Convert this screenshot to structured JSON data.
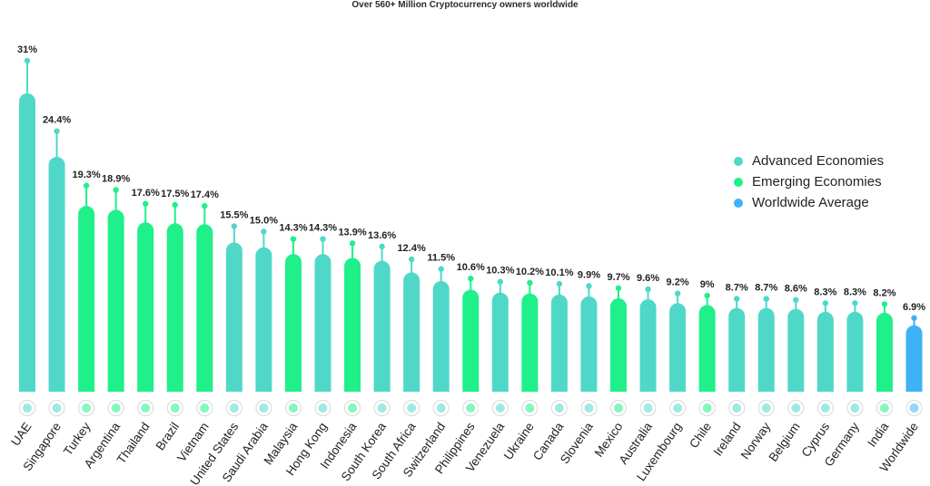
{
  "chart_data": {
    "type": "bar",
    "title": "Over 560+ Million Cryptocurrency owners worldwide",
    "xlabel": "",
    "ylabel": "",
    "ylim": [
      0,
      31
    ],
    "grid": false,
    "legend_position": "right",
    "categories": [
      "UAE",
      "Singapore",
      "Turkey",
      "Argentina",
      "Thailand",
      "Brazil",
      "Vietnam",
      "United States",
      "Saudi Arabia",
      "Malaysia",
      "Hong Kong",
      "Indonesia",
      "South Korea",
      "South Africa",
      "Switzerland",
      "Philippines",
      "Venezuela",
      "Ukraine",
      "Canada",
      "Slovenia",
      "Mexico",
      "Australia",
      "Luxembourg",
      "Chile",
      "Ireland",
      "Norway",
      "Belgium",
      "Cyprus",
      "Germany",
      "India",
      "Worldwide"
    ],
    "value_labels": [
      "31%",
      "24.4%",
      "19.3%",
      "18.9%",
      "17.6%",
      "17.5%",
      "17.4%",
      "15.5%",
      "15.0%",
      "14.3%",
      "14.3%",
      "13.9%",
      "13.6%",
      "12.4%",
      "11.5%",
      "10.6%",
      "10.3%",
      "10.2%",
      "10.1%",
      "9.9%",
      "9.7%",
      "9.6%",
      "9.2%",
      "9%",
      "8.7%",
      "8.7%",
      "8.6%",
      "8.3%",
      "8.3%",
      "8.2%",
      "6.9%"
    ],
    "values": [
      31,
      24.4,
      19.3,
      18.9,
      17.6,
      17.5,
      17.4,
      15.5,
      15.0,
      14.3,
      14.3,
      13.9,
      13.6,
      12.4,
      11.5,
      10.6,
      10.3,
      10.2,
      10.1,
      9.9,
      9.7,
      9.6,
      9.2,
      9,
      8.7,
      8.7,
      8.6,
      8.3,
      8.3,
      8.2,
      6.9
    ],
    "groups": [
      "advanced",
      "advanced",
      "emerging",
      "emerging",
      "emerging",
      "emerging",
      "emerging",
      "advanced",
      "advanced",
      "emerging",
      "advanced",
      "emerging",
      "advanced",
      "advanced",
      "advanced",
      "emerging",
      "advanced",
      "emerging",
      "advanced",
      "advanced",
      "emerging",
      "advanced",
      "advanced",
      "emerging",
      "advanced",
      "advanced",
      "advanced",
      "advanced",
      "advanced",
      "emerging",
      "worldwide"
    ],
    "legend": [
      {
        "key": "advanced",
        "name": "Advanced Economies",
        "color": "#4fd8c8"
      },
      {
        "key": "emerging",
        "name": "Emerging Economies",
        "color": "#1ff08a"
      },
      {
        "key": "worldwide",
        "name": "Worldwide Average",
        "color": "#3eb2f5"
      }
    ]
  }
}
